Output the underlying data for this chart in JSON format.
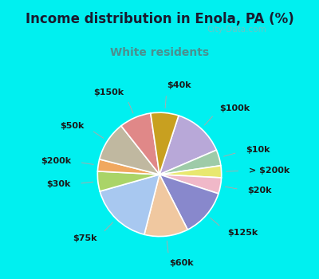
{
  "title": "Income distribution in Enola, PA (%)",
  "subtitle": "White residents",
  "title_color": "#1a1a2e",
  "subtitle_color": "#4a9090",
  "bg_cyan": "#00f0f0",
  "bg_chart_tl": "#e8f8f0",
  "bg_chart_br": "#c8eee8",
  "labels": [
    "$100k",
    "$10k",
    "> $200k",
    "$20k",
    "$125k",
    "$60k",
    "$75k",
    "$30k",
    "$200k",
    "$50k",
    "$150k",
    "$40k"
  ],
  "values": [
    13,
    4,
    3,
    4,
    12,
    11,
    16,
    5,
    3,
    10,
    8,
    7
  ],
  "colors": [
    "#b8a8d8",
    "#9ecba8",
    "#e8e870",
    "#f0b8c8",
    "#8888cc",
    "#f0c8a0",
    "#a8c8f0",
    "#aad468",
    "#f0a860",
    "#c0b8a0",
    "#e08888",
    "#c8a020"
  ],
  "watermark": "City-Data.com",
  "startangle": 72,
  "label_fontsize": 8,
  "title_fontsize": 12,
  "subtitle_fontsize": 10,
  "line_color": "#aaaaaa",
  "label_color": "#1a1a1a"
}
